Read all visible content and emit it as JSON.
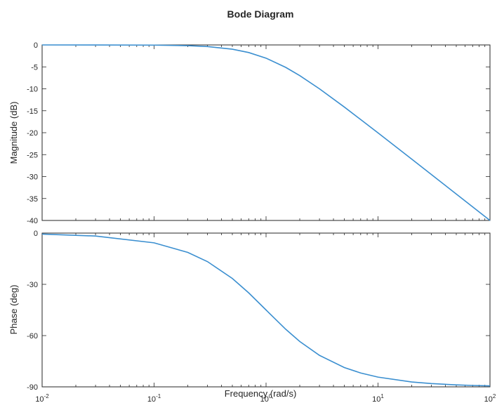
{
  "chart_data": {
    "type": "line",
    "title": "Bode Diagram",
    "xlabel": "Frequency  (rad/s)",
    "x_scale": "log",
    "xlim": [
      0.01,
      100
    ],
    "x_tick_labels": [
      {
        "base": "10",
        "exp": "-2"
      },
      {
        "base": "10",
        "exp": "-1"
      },
      {
        "base": "10",
        "exp": "0"
      },
      {
        "base": "10",
        "exp": "1"
      },
      {
        "base": "10",
        "exp": "2"
      }
    ],
    "line_color": "#3b8fd0",
    "grid": false,
    "x": [
      0.01,
      0.03,
      0.1,
      0.2,
      0.3,
      0.5,
      0.7,
      1,
      1.5,
      2,
      3,
      5,
      7,
      10,
      20,
      30,
      50,
      70,
      100
    ],
    "panels": [
      {
        "name": "magnitude",
        "ylabel": "Magnitude (dB)",
        "ylim": [
          -40,
          0
        ],
        "yticks": [
          "0",
          "-5",
          "-10",
          "-15",
          "-20",
          "-25",
          "-30",
          "-35",
          "-40"
        ],
        "series": [
          {
            "values": [
              0,
              -0.004,
              -0.04,
              -0.17,
              -0.37,
              -0.97,
              -1.73,
              -3.01,
              -5.12,
              -6.99,
              -10.0,
              -14.15,
              -17.0,
              -20.04,
              -26.02,
              -29.54,
              -33.98,
              -36.9,
              -40.0
            ]
          }
        ]
      },
      {
        "name": "phase",
        "ylabel": "Phase (deg)",
        "ylim": [
          -90,
          0
        ],
        "yticks": [
          "0",
          "-30",
          "-60",
          "-90"
        ],
        "series": [
          {
            "values": [
              -0.57,
              -1.72,
              -5.71,
              -11.31,
              -16.7,
              -26.57,
              -34.99,
              -45.0,
              -56.31,
              -63.43,
              -71.57,
              -78.69,
              -81.87,
              -84.29,
              -87.14,
              -88.09,
              -88.85,
              -89.18,
              -89.43
            ]
          }
        ]
      }
    ]
  }
}
